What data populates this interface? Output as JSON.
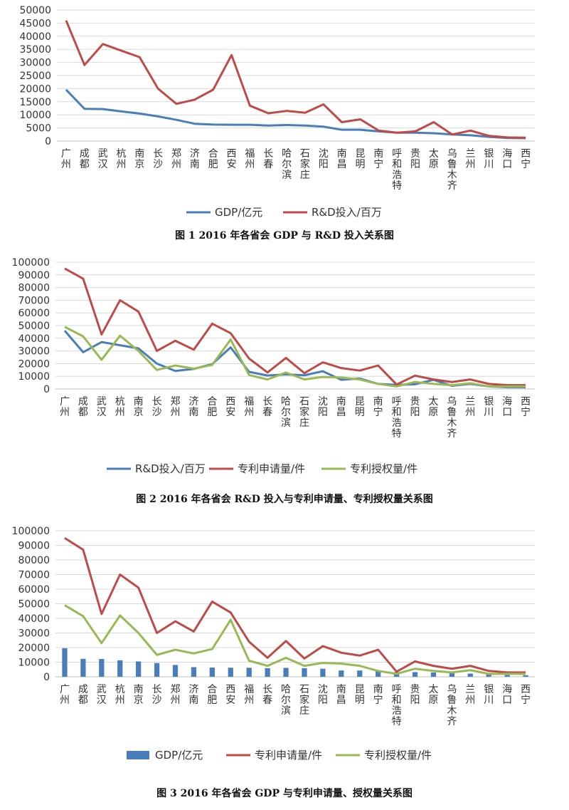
{
  "chart_data": [
    {
      "type": "line",
      "categories": [
        "广州",
        "成都",
        "武汉",
        "杭州",
        "南京",
        "长沙",
        "郑州",
        "济南",
        "合肥",
        "西安",
        "福州",
        "长春",
        "哈尔滨",
        "石家庄",
        "沈阳",
        "南昌",
        "昆明",
        "南宁",
        "呼和浩特",
        "贵阳",
        "太原",
        "乌鲁木齐",
        "兰州",
        "银川",
        "海口",
        "西宁"
      ],
      "ylim": [
        0,
        50000
      ],
      "yticks": [
        "0",
        "5000",
        "10000",
        "15000",
        "20000",
        "25000",
        "30000",
        "35000",
        "40000",
        "45000",
        "50000"
      ],
      "grid": true,
      "legend": "bottom",
      "series": [
        {
          "name": "GDP/亿元",
          "color": "#4a7ebb",
          "values": [
            19600,
            12300,
            12200,
            11300,
            10500,
            9400,
            8100,
            6600,
            6300,
            6200,
            6200,
            5900,
            6100,
            5900,
            5500,
            4300,
            4300,
            3700,
            3200,
            3200,
            3000,
            2500,
            2200,
            1600,
            1200,
            1100
          ]
        },
        {
          "name": "R&D投入/百万",
          "color": "#be4b48",
          "values": [
            46000,
            29000,
            37000,
            34500,
            32000,
            20000,
            14200,
            15800,
            19600,
            32800,
            13500,
            10600,
            11500,
            10800,
            14000,
            7200,
            8300,
            4000,
            3200,
            3700,
            7200,
            2500,
            4000,
            2000,
            1400,
            1300
          ]
        }
      ],
      "caption": "图 1  2016 年各省会 GDP 与 R&D 投入关系图"
    },
    {
      "type": "line",
      "categories": [
        "广州",
        "成都",
        "武汉",
        "杭州",
        "南京",
        "长沙",
        "郑州",
        "济南",
        "合肥",
        "西安",
        "福州",
        "长春",
        "哈尔滨",
        "石家庄",
        "沈阳",
        "南昌",
        "昆明",
        "南宁",
        "呼和浩特",
        "贵阳",
        "太原",
        "乌鲁木齐",
        "兰州",
        "银川",
        "海口",
        "西宁"
      ],
      "ylim": [
        0,
        100000
      ],
      "yticks": [
        "0",
        "10000",
        "20000",
        "30000",
        "40000",
        "50000",
        "60000",
        "70000",
        "80000",
        "90000",
        "100000"
      ],
      "grid": true,
      "legend": "bottom",
      "series": [
        {
          "name": "R&D投入/百万",
          "color": "#4a7ebb",
          "values": [
            46000,
            29000,
            37000,
            34500,
            32000,
            20000,
            14200,
            15800,
            19600,
            32800,
            13500,
            10600,
            11500,
            10800,
            14000,
            7200,
            8300,
            4000,
            3200,
            3700,
            7200,
            2500,
            4000,
            2000,
            1400,
            1300
          ]
        },
        {
          "name": "专利申请量/件",
          "color": "#be4b48",
          "values": [
            95000,
            87000,
            43000,
            70000,
            61000,
            30000,
            38000,
            31000,
            51500,
            44000,
            24000,
            13000,
            24500,
            12500,
            21000,
            16500,
            14500,
            18500,
            3500,
            10500,
            7500,
            5500,
            7500,
            4000,
            3000,
            3000
          ]
        },
        {
          "name": "专利授权量/件",
          "color": "#98b954",
          "values": [
            49000,
            41500,
            23000,
            42000,
            30000,
            15000,
            18500,
            16000,
            19000,
            39000,
            11000,
            7500,
            13000,
            7500,
            9500,
            9000,
            7500,
            4000,
            2000,
            5500,
            4000,
            3000,
            4500,
            2000,
            2000,
            2000
          ]
        }
      ],
      "caption": "图 2  2016 年各省会 R&D 投入与专利申请量、专利授权量关系图"
    },
    {
      "type": "bar+line",
      "categories": [
        "广州",
        "成都",
        "武汉",
        "杭州",
        "南京",
        "长沙",
        "郑州",
        "济南",
        "合肥",
        "西安",
        "福州",
        "长春",
        "哈尔滨",
        "石家庄",
        "沈阳",
        "南昌",
        "昆明",
        "南宁",
        "呼和浩特",
        "贵阳",
        "太原",
        "乌鲁木齐",
        "兰州",
        "银川",
        "海口",
        "西宁"
      ],
      "ylim": [
        0,
        100000
      ],
      "yticks": [
        "0",
        "10000",
        "20000",
        "30000",
        "40000",
        "50000",
        "60000",
        "70000",
        "80000",
        "90000",
        "100000"
      ],
      "grid": true,
      "legend": "bottom",
      "series": [
        {
          "name": "GDP/亿元",
          "kind": "bar",
          "color": "#4a7ebb",
          "values": [
            19600,
            12300,
            12200,
            11300,
            10500,
            9400,
            8100,
            6600,
            6300,
            6200,
            6200,
            5900,
            6100,
            5900,
            5500,
            4300,
            4300,
            3700,
            3200,
            3200,
            3000,
            2500,
            2200,
            1600,
            1200,
            1100
          ]
        },
        {
          "name": "专利申请量/件",
          "kind": "line",
          "color": "#be4b48",
          "values": [
            95000,
            87000,
            43000,
            70000,
            61000,
            30000,
            38000,
            31000,
            51500,
            44000,
            24000,
            13000,
            24500,
            12500,
            21000,
            16500,
            14500,
            18500,
            3500,
            10500,
            7500,
            5500,
            7500,
            4000,
            3000,
            3000
          ]
        },
        {
          "name": "专利授权量/件",
          "kind": "line",
          "color": "#98b954",
          "values": [
            49000,
            41500,
            23000,
            42000,
            30000,
            15000,
            18500,
            16000,
            19000,
            39000,
            11000,
            7500,
            13000,
            7500,
            9500,
            9000,
            7500,
            4000,
            2000,
            5500,
            4000,
            3000,
            4500,
            2000,
            2000,
            2000
          ]
        }
      ],
      "caption": "图 3  2016 年各省会 GDP 与专利申请量、授权量关系图"
    }
  ]
}
